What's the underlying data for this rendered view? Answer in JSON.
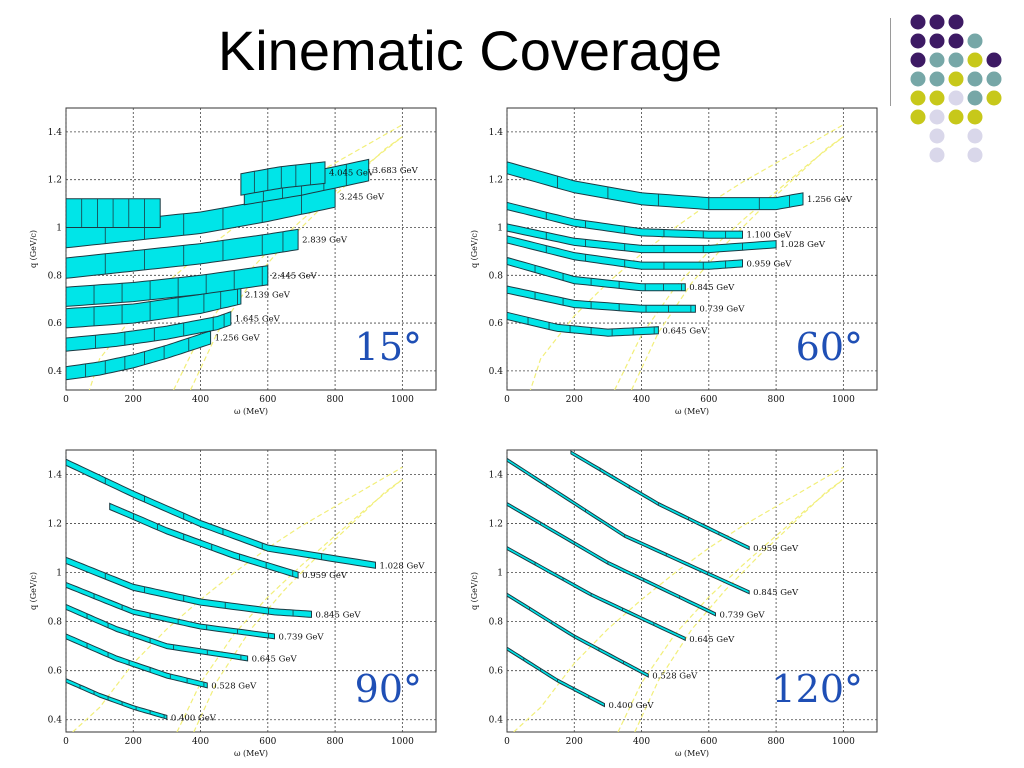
{
  "title": "Kinematic Coverage",
  "colors": {
    "band_fill": "#00e5e8",
    "band_edge": "#1b3b44",
    "qe_line": "#f2ef7a",
    "angle_label": "#1f4fb5",
    "grid": "#333333"
  },
  "decor_dots": [
    {
      "color": "#3d1a64"
    },
    {
      "color": "#3d1a64"
    },
    {
      "color": "#3d1a64"
    },
    {
      "color": "#3d1a64"
    },
    {
      "color": "#3d1a64"
    },
    {
      "color": "#3d1a64"
    },
    {
      "color": "#76a7a7"
    },
    {
      "color": "#3d1a64"
    },
    {
      "color": "#76a7a7"
    },
    {
      "color": "#76a7a7"
    },
    {
      "color": "#c7c81a"
    },
    {
      "color": "#3d1a64"
    },
    {
      "color": "#76a7a7"
    },
    {
      "color": "#76a7a7"
    },
    {
      "color": "#c7c81a"
    },
    {
      "color": "#76a7a7"
    },
    {
      "color": "#76a7a7"
    },
    {
      "color": "#c7c81a"
    },
    {
      "color": "#c7c81a"
    },
    {
      "color": "#d9d7ea"
    },
    {
      "color": "#76a7a7"
    },
    {
      "color": "#c7c81a"
    },
    {
      "color": "#c7c81a"
    },
    {
      "color": "#d9d7ea"
    },
    {
      "color": "#c7c81a"
    },
    {
      "color": "#c7c81a"
    },
    {
      "color": "#d9d7ea"
    },
    {
      "color": "#d9d7ea"
    },
    {
      "color": "#d9d7ea"
    },
    {
      "color": "#d9d7ea"
    }
  ],
  "chart_data": [
    {
      "type": "band",
      "angle_label": "15°",
      "xlabel": "ω (MeV)",
      "ylabel": "q (GeV/c)",
      "xlim": [
        0,
        1100
      ],
      "ylim": [
        0.32,
        1.5
      ],
      "xticks": [
        "0",
        "200",
        "400",
        "600",
        "800",
        "1000"
      ],
      "yticks": [
        "0.4",
        "0.6",
        "0.8",
        "1",
        "1.2",
        "1.4"
      ],
      "series": [
        {
          "name": "1.256 GeV",
          "x": [
            0,
            100,
            200,
            300,
            430
          ],
          "y": [
            0.39,
            0.41,
            0.44,
            0.48,
            0.54
          ],
          "width": 0.055
        },
        {
          "name": "1.645 GeV",
          "x": [
            0,
            150,
            300,
            450,
            490
          ],
          "y": [
            0.51,
            0.53,
            0.56,
            0.6,
            0.62
          ],
          "width": 0.055
        },
        {
          "name": "2.139 GeV",
          "x": [
            0,
            200,
            400,
            520
          ],
          "y": [
            0.62,
            0.64,
            0.68,
            0.72
          ],
          "width": 0.08
        },
        {
          "name": "2.445 GeV",
          "x": [
            0,
            200,
            400,
            600
          ],
          "y": [
            0.71,
            0.73,
            0.76,
            0.8
          ],
          "width": 0.08
        },
        {
          "name": "2.839 GeV",
          "x": [
            0,
            200,
            400,
            600,
            690
          ],
          "y": [
            0.83,
            0.86,
            0.89,
            0.93,
            0.95
          ],
          "width": 0.085
        },
        {
          "name": "3.245 GeV",
          "x": [
            0,
            200,
            400,
            600,
            800
          ],
          "y": [
            0.96,
            0.99,
            1.02,
            1.07,
            1.13
          ],
          "width": 0.09
        },
        {
          "name": "3.683 GeV",
          "x": [
            530,
            700,
            900
          ],
          "y": [
            1.14,
            1.18,
            1.24
          ],
          "width": 0.09
        },
        {
          "name": "4.045 GeV",
          "x": [
            520,
            640,
            770
          ],
          "y": [
            1.18,
            1.21,
            1.23
          ],
          "width": 0.09
        },
        {
          "name": "",
          "x": [
            0,
            280
          ],
          "y": [
            1.06,
            1.06
          ],
          "width": 0.12
        }
      ],
      "qe_lines": [
        {
          "x": [
            0,
            100,
            200,
            300,
            400,
            500,
            600,
            700,
            800,
            1000
          ],
          "y": [
            0.02,
            0.45,
            0.63,
            0.77,
            0.89,
            1.0,
            1.1,
            1.19,
            1.27,
            1.43
          ]
        },
        {
          "x": [
            320,
            400,
            500,
            600,
            700,
            800,
            900,
            1000
          ],
          "y": [
            0.32,
            0.55,
            0.75,
            0.9,
            1.03,
            1.15,
            1.27,
            1.38
          ]
        },
        {
          "x": [
            370,
            450,
            550,
            650,
            750,
            850,
            950,
            1000
          ],
          "y": [
            0.32,
            0.56,
            0.77,
            0.93,
            1.07,
            1.2,
            1.33,
            1.38
          ]
        }
      ]
    },
    {
      "type": "band",
      "angle_label": "60°",
      "xlabel": "ω (MeV)",
      "ylabel": "q (GeV/c)",
      "xlim": [
        0,
        1100
      ],
      "ylim": [
        0.32,
        1.5
      ],
      "xticks": [
        "0",
        "200",
        "400",
        "600",
        "800",
        "1000"
      ],
      "yticks": [
        "0.4",
        "0.6",
        "0.8",
        "1",
        "1.2",
        "1.4"
      ],
      "series": [
        {
          "name": "0.645 GeV",
          "x": [
            0,
            150,
            300,
            450
          ],
          "y": [
            0.63,
            0.58,
            0.56,
            0.57
          ],
          "width": 0.03
        },
        {
          "name": "0.739 GeV",
          "x": [
            0,
            200,
            400,
            560
          ],
          "y": [
            0.74,
            0.68,
            0.66,
            0.66
          ],
          "width": 0.03
        },
        {
          "name": "0.845 GeV",
          "x": [
            0,
            200,
            400,
            530
          ],
          "y": [
            0.86,
            0.78,
            0.75,
            0.75
          ],
          "width": 0.03
        },
        {
          "name": "0.959 GeV",
          "x": [
            0,
            200,
            400,
            600,
            700
          ],
          "y": [
            0.95,
            0.88,
            0.84,
            0.84,
            0.85
          ],
          "width": 0.03
        },
        {
          "name": "1.028 GeV",
          "x": [
            0,
            200,
            400,
            600,
            800
          ],
          "y": [
            1.0,
            0.94,
            0.91,
            0.91,
            0.93
          ],
          "width": 0.03
        },
        {
          "name": "1.100 GeV",
          "x": [
            0,
            200,
            400,
            600,
            700
          ],
          "y": [
            1.09,
            1.02,
            0.98,
            0.97,
            0.97
          ],
          "width": 0.03
        },
        {
          "name": "1.256 GeV",
          "x": [
            0,
            200,
            400,
            600,
            800,
            880
          ],
          "y": [
            1.25,
            1.17,
            1.12,
            1.1,
            1.1,
            1.12
          ],
          "width": 0.05
        }
      ],
      "qe_lines": [
        {
          "x": [
            0,
            100,
            200,
            300,
            400,
            500,
            600,
            700,
            800,
            1000
          ],
          "y": [
            0.02,
            0.45,
            0.63,
            0.77,
            0.89,
            1.0,
            1.1,
            1.19,
            1.27,
            1.43
          ]
        },
        {
          "x": [
            320,
            400,
            500,
            600,
            700,
            800,
            900,
            1000
          ],
          "y": [
            0.32,
            0.55,
            0.75,
            0.9,
            1.03,
            1.15,
            1.27,
            1.38
          ]
        },
        {
          "x": [
            370,
            450,
            550,
            650,
            750,
            850,
            950,
            1000
          ],
          "y": [
            0.32,
            0.56,
            0.77,
            0.93,
            1.07,
            1.2,
            1.33,
            1.38
          ]
        }
      ]
    },
    {
      "type": "band",
      "angle_label": "90°",
      "xlabel": "ω (MeV)",
      "ylabel": "q (GeV/c)",
      "xlim": [
        0,
        1100
      ],
      "ylim": [
        0.35,
        1.5
      ],
      "xticks": [
        "0",
        "200",
        "400",
        "600",
        "800",
        "1000"
      ],
      "yticks": [
        "0.4",
        "0.6",
        "0.8",
        "1",
        "1.2",
        "1.4"
      ],
      "series": [
        {
          "name": "0.400 GeV",
          "x": [
            0,
            100,
            200,
            300
          ],
          "y": [
            0.56,
            0.5,
            0.45,
            0.41
          ],
          "width": 0.015
        },
        {
          "name": "0.528 GeV",
          "x": [
            0,
            150,
            300,
            420
          ],
          "y": [
            0.74,
            0.65,
            0.58,
            0.54
          ],
          "width": 0.02
        },
        {
          "name": "0.645 GeV",
          "x": [
            0,
            150,
            300,
            540
          ],
          "y": [
            0.86,
            0.77,
            0.7,
            0.65
          ],
          "width": 0.02
        },
        {
          "name": "0.739 GeV",
          "x": [
            0,
            200,
            400,
            620
          ],
          "y": [
            0.95,
            0.84,
            0.78,
            0.74
          ],
          "width": 0.02
        },
        {
          "name": "0.845 GeV",
          "x": [
            0,
            200,
            400,
            620,
            730
          ],
          "y": [
            1.05,
            0.94,
            0.88,
            0.84,
            0.83
          ],
          "width": 0.025
        },
        {
          "name": "0.959 GeV",
          "x": [
            130,
            300,
            500,
            690
          ],
          "y": [
            1.27,
            1.17,
            1.07,
            0.99
          ],
          "width": 0.025
        },
        {
          "name": "1.028 GeV",
          "x": [
            0,
            200,
            400,
            600,
            920
          ],
          "y": [
            1.45,
            1.32,
            1.2,
            1.1,
            1.03
          ],
          "width": 0.025
        }
      ],
      "qe_lines": [
        {
          "x": [
            20,
            100,
            200,
            300,
            400,
            500,
            600,
            700,
            800,
            1000
          ],
          "y": [
            0.35,
            0.45,
            0.63,
            0.77,
            0.89,
            1.0,
            1.1,
            1.19,
            1.27,
            1.43
          ]
        },
        {
          "x": [
            330,
            400,
            500,
            600,
            700,
            800,
            900,
            1000
          ],
          "y": [
            0.35,
            0.55,
            0.75,
            0.9,
            1.03,
            1.15,
            1.27,
            1.38
          ]
        },
        {
          "x": [
            380,
            450,
            550,
            650,
            750,
            850,
            950,
            1000
          ],
          "y": [
            0.35,
            0.56,
            0.77,
            0.93,
            1.07,
            1.2,
            1.33,
            1.38
          ]
        }
      ]
    },
    {
      "type": "band",
      "angle_label": "120°",
      "xlabel": "ω (MeV)",
      "ylabel": "q (GeV/c)",
      "xlim": [
        0,
        1100
      ],
      "ylim": [
        0.35,
        1.5
      ],
      "xticks": [
        "0",
        "200",
        "400",
        "600",
        "800",
        "1000"
      ],
      "yticks": [
        "0.4",
        "0.6",
        "0.8",
        "1",
        "1.2",
        "1.4"
      ],
      "series": [
        {
          "name": "0.400 GeV",
          "x": [
            0,
            150,
            290
          ],
          "y": [
            0.69,
            0.56,
            0.46
          ],
          "width": 0.012
        },
        {
          "name": "0.528 GeV",
          "x": [
            0,
            200,
            420
          ],
          "y": [
            0.91,
            0.74,
            0.58
          ],
          "width": 0.012
        },
        {
          "name": "0.645 GeV",
          "x": [
            0,
            250,
            530
          ],
          "y": [
            1.1,
            0.91,
            0.73
          ],
          "width": 0.012
        },
        {
          "name": "0.739 GeV",
          "x": [
            0,
            300,
            620
          ],
          "y": [
            1.28,
            1.04,
            0.83
          ],
          "width": 0.012
        },
        {
          "name": "0.845 GeV",
          "x": [
            0,
            350,
            720
          ],
          "y": [
            1.46,
            1.15,
            0.92
          ],
          "width": 0.012
        },
        {
          "name": "0.959 GeV",
          "x": [
            190,
            450,
            720
          ],
          "y": [
            1.49,
            1.28,
            1.1
          ],
          "width": 0.012
        }
      ],
      "qe_lines": [
        {
          "x": [
            20,
            100,
            200,
            300,
            400,
            500,
            600,
            700,
            800,
            1000
          ],
          "y": [
            0.35,
            0.45,
            0.63,
            0.77,
            0.89,
            1.0,
            1.1,
            1.19,
            1.27,
            1.43
          ]
        },
        {
          "x": [
            330,
            400,
            500,
            600,
            700,
            800,
            900,
            1000
          ],
          "y": [
            0.35,
            0.55,
            0.75,
            0.9,
            1.03,
            1.15,
            1.27,
            1.38
          ]
        },
        {
          "x": [
            380,
            450,
            550,
            650,
            750,
            850,
            950,
            1000
          ],
          "y": [
            0.35,
            0.56,
            0.77,
            0.93,
            1.07,
            1.2,
            1.33,
            1.38
          ]
        }
      ]
    }
  ]
}
